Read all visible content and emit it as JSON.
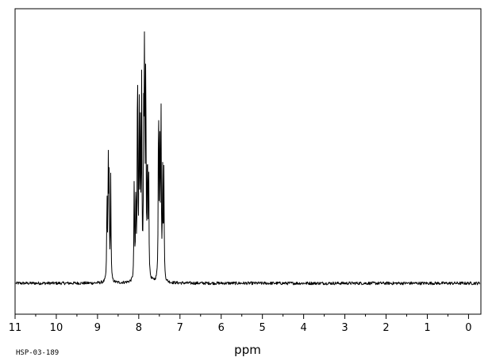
{
  "chart_data": {
    "type": "line",
    "title": "",
    "xlabel": "ppm",
    "ylabel": "",
    "xlim": [
      11.0,
      -0.3
    ],
    "x_reversed": true,
    "grid": false,
    "baseline": 0.0,
    "ylim": [
      -0.05,
      1.0
    ],
    "xticks": [
      11,
      10,
      9,
      8,
      7,
      6,
      5,
      4,
      3,
      2,
      1,
      0
    ],
    "xtick_labels": [
      "11",
      "10",
      "9",
      "8",
      "7",
      "6",
      "5",
      "4",
      "3",
      "2",
      "1",
      "0"
    ],
    "minor_tick_step": 0.5,
    "noise_amplitude": 0.006,
    "line_color": "#000000",
    "peaks": [
      {
        "ppm": 8.77,
        "height": 0.34
      },
      {
        "ppm": 8.74,
        "height": 0.46
      },
      {
        "ppm": 8.72,
        "height": 0.39
      },
      {
        "ppm": 8.68,
        "height": 0.41
      },
      {
        "ppm": 8.11,
        "height": 0.41
      },
      {
        "ppm": 8.07,
        "height": 0.37
      },
      {
        "ppm": 8.03,
        "height": 0.91
      },
      {
        "ppm": 7.99,
        "height": 0.72
      },
      {
        "ppm": 7.96,
        "height": 0.57
      },
      {
        "ppm": 7.93,
        "height": 0.75
      },
      {
        "ppm": 7.88,
        "height": 0.59
      },
      {
        "ppm": 7.86,
        "height": 0.98
      },
      {
        "ppm": 7.83,
        "height": 0.87
      },
      {
        "ppm": 7.79,
        "height": 0.51
      },
      {
        "ppm": 7.76,
        "height": 0.47
      },
      {
        "ppm": 7.52,
        "height": 0.74
      },
      {
        "ppm": 7.49,
        "height": 0.58
      },
      {
        "ppm": 7.46,
        "height": 0.69
      },
      {
        "ppm": 7.42,
        "height": 0.41
      },
      {
        "ppm": 7.39,
        "height": 0.42
      }
    ]
  },
  "sample_id": "HSP-03-189"
}
